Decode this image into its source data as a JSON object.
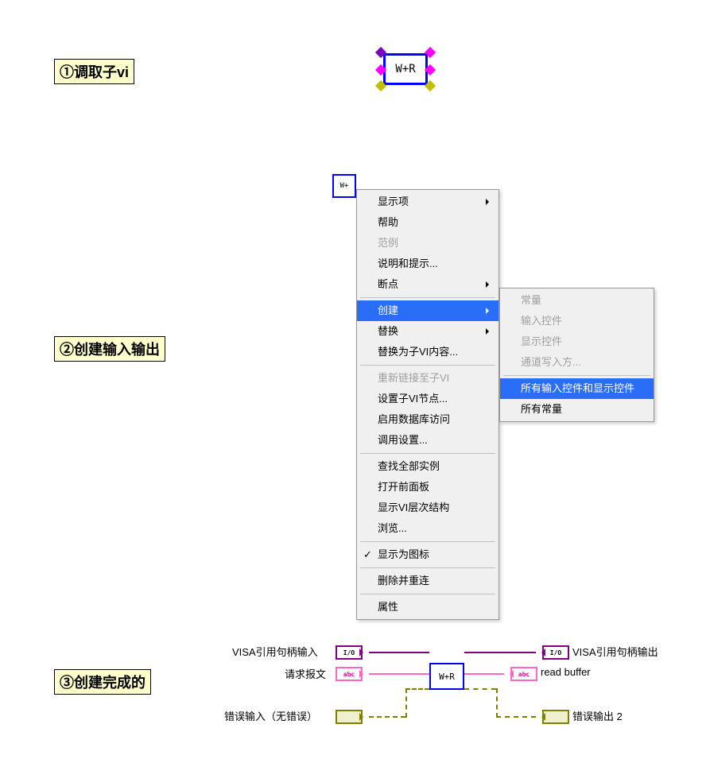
{
  "colors": {
    "label_bg": "#ffffcc",
    "vi_border": "#0000ff",
    "term_purple": "#8000c0",
    "term_magenta": "#ff00ff",
    "term_yellow": "#c0c000",
    "menu_highlight": "#2a6ef7",
    "menu_bg": "#f0f0f0",
    "visa_purple": "#800080",
    "string_pink": "#ff66cc",
    "error_olive": "#808000",
    "disabled_text": "#a0a0a0"
  },
  "step1": {
    "label": "①调取子vi",
    "vi_text": "W+R"
  },
  "step2": {
    "label": "②创建输入输出",
    "small_vi_text": "W+",
    "menu1": {
      "items": [
        {
          "text": "显示项",
          "enabled": true,
          "arrow": true
        },
        {
          "text": "帮助",
          "enabled": true
        },
        {
          "text": "范例",
          "enabled": false
        },
        {
          "text": "说明和提示...",
          "enabled": true
        },
        {
          "text": "断点",
          "enabled": true,
          "arrow": true
        },
        {
          "sep": true
        },
        {
          "text": "创建",
          "enabled": true,
          "arrow": true,
          "highlight": true
        },
        {
          "text": "替换",
          "enabled": true,
          "arrow": true
        },
        {
          "text": "替换为子VI内容...",
          "enabled": true
        },
        {
          "sep": true
        },
        {
          "text": "重新链接至子VI",
          "enabled": false
        },
        {
          "text": "设置子VI节点...",
          "enabled": true
        },
        {
          "text": "启用数据库访问",
          "enabled": true
        },
        {
          "text": "调用设置...",
          "enabled": true
        },
        {
          "sep": true
        },
        {
          "text": "查找全部实例",
          "enabled": true
        },
        {
          "text": "打开前面板",
          "enabled": true
        },
        {
          "text": "显示VI层次结构",
          "enabled": true
        },
        {
          "text": "浏览...",
          "enabled": true
        },
        {
          "sep": true
        },
        {
          "text": "显示为图标",
          "enabled": true,
          "check": true
        },
        {
          "sep": true
        },
        {
          "text": "删除并重连",
          "enabled": true
        },
        {
          "sep": true
        },
        {
          "text": "属性",
          "enabled": true
        }
      ]
    },
    "menu2": {
      "items": [
        {
          "text": "常量",
          "enabled": false
        },
        {
          "text": "输入控件",
          "enabled": false
        },
        {
          "text": "显示控件",
          "enabled": false
        },
        {
          "text": "通道写入方...",
          "enabled": false
        },
        {
          "sep": true
        },
        {
          "text": "所有输入控件和显示控件",
          "enabled": true,
          "highlight": true
        },
        {
          "text": "所有常量",
          "enabled": true
        }
      ]
    }
  },
  "step3": {
    "label": "③创建完成的",
    "vi_text": "W+R",
    "terminals": {
      "visa_in": {
        "label": "VISA引用句柄输入",
        "glyph": "I/O",
        "color": "#800080"
      },
      "req_in": {
        "label": "请求报文",
        "glyph": "abc",
        "color": "#ff66cc"
      },
      "err_in": {
        "label": "错误输入（无错误）",
        "glyph": "",
        "color": "#808000"
      },
      "visa_out": {
        "label": "VISA引用句柄输出",
        "glyph": "I/O",
        "color": "#800080"
      },
      "buf_out": {
        "label": "read buffer",
        "glyph": "abc",
        "color": "#ff66cc"
      },
      "err_out": {
        "label": "错误输出 2",
        "glyph": "",
        "color": "#808000"
      }
    }
  }
}
